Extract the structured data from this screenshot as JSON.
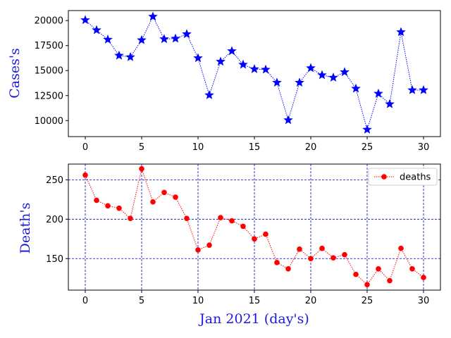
{
  "chart_data": [
    {
      "type": "line",
      "ylabel": "Cases's",
      "xlabel": "",
      "ylim": [
        8400,
        21000
      ],
      "xlim": [
        -1.5,
        31.5
      ],
      "x_ticks": [
        0,
        5,
        10,
        15,
        20,
        25,
        30
      ],
      "y_ticks": [
        10000,
        12500,
        15000,
        17500,
        20000
      ],
      "grid": false,
      "legend": null,
      "series": [
        {
          "line_color": "#0000ff",
          "line_style": "dotted",
          "marker": "star",
          "x": [
            0,
            1,
            2,
            3,
            4,
            5,
            6,
            7,
            8,
            9,
            10,
            11,
            12,
            13,
            14,
            15,
            16,
            17,
            18,
            19,
            20,
            21,
            22,
            23,
            24,
            25,
            26,
            27,
            28,
            29,
            30
          ],
          "values": [
            20050,
            19050,
            18100,
            16500,
            16350,
            18050,
            20400,
            18150,
            18200,
            18650,
            16250,
            12550,
            15900,
            16950,
            15600,
            15150,
            15100,
            13800,
            10050,
            13800,
            15250,
            14550,
            14300,
            14850,
            13200,
            9100,
            12700,
            11650,
            18850,
            13050,
            13050
          ]
        }
      ]
    },
    {
      "type": "line",
      "ylabel": "Death's",
      "xlabel": "Jan 2021 (day's)",
      "ylim": [
        110,
        270
      ],
      "xlim": [
        -1.5,
        31.5
      ],
      "x_ticks": [
        0,
        5,
        10,
        15,
        20,
        25,
        30
      ],
      "y_ticks": [
        150,
        200,
        250
      ],
      "grid": true,
      "legend": "top-right",
      "series": [
        {
          "name": "deaths",
          "line_color": "#ff0000",
          "line_style": "dotted",
          "marker": "circle",
          "x": [
            0,
            1,
            2,
            3,
            4,
            5,
            6,
            7,
            8,
            9,
            10,
            11,
            12,
            13,
            14,
            15,
            16,
            17,
            18,
            19,
            20,
            21,
            22,
            23,
            24,
            25,
            26,
            27,
            28,
            29,
            30
          ],
          "values": [
            256,
            224,
            217,
            214,
            201,
            264,
            222,
            234,
            228,
            201,
            161,
            167,
            202,
            198,
            191,
            175,
            181,
            145,
            137,
            162,
            150,
            163,
            151,
            155,
            130,
            117,
            137,
            122,
            163,
            137,
            126
          ]
        }
      ]
    }
  ]
}
